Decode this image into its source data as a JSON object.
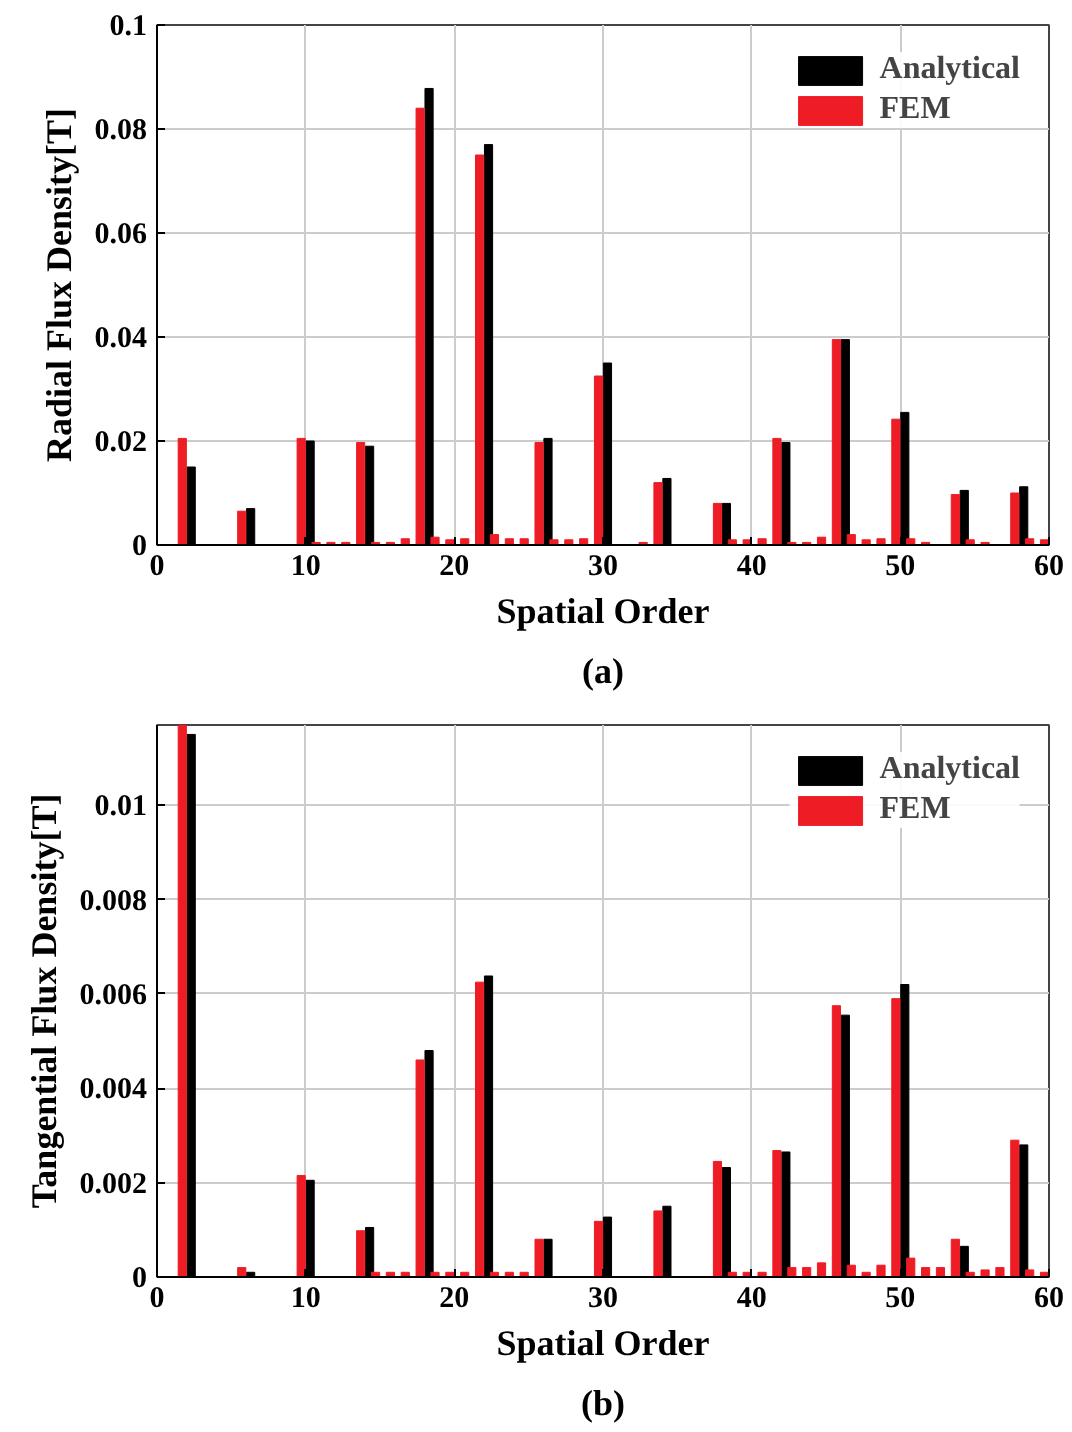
{
  "chart_data": [
    {
      "type": "bar",
      "xlabel": "Spatial Order",
      "ylabel": "Radial Flux Density[T]",
      "annotations": [
        "(a)"
      ],
      "xlim": [
        0,
        60
      ],
      "xticks": [
        0,
        10,
        20,
        30,
        40,
        50,
        60
      ],
      "ylim": [
        0,
        0.1
      ],
      "yticks": [
        0,
        0.02,
        0.04,
        0.06,
        0.08,
        0.1
      ],
      "grid": true,
      "legend": "top right",
      "series": [
        {
          "name": "Analytical",
          "color": "#000000",
          "x": [
            2,
            6,
            10,
            14,
            18,
            22,
            26,
            30,
            34,
            38,
            42,
            46,
            50,
            54,
            58
          ],
          "values": [
            0.015,
            0.007,
            0.02,
            0.019,
            0.0878,
            0.077,
            0.0205,
            0.035,
            0.0128,
            0.008,
            0.0197,
            0.0395,
            0.0255,
            0.0105,
            0.0112
          ]
        },
        {
          "name": "FEM",
          "color": "#ee1c25",
          "x": [
            2,
            6,
            10,
            11,
            12,
            13,
            14,
            15,
            16,
            17,
            18,
            19,
            20,
            21,
            22,
            23,
            24,
            25,
            26,
            27,
            28,
            29,
            30,
            33,
            34,
            38,
            39,
            40,
            41,
            42,
            43,
            44,
            45,
            46,
            47,
            48,
            49,
            50,
            51,
            52,
            54,
            55,
            56,
            58,
            59,
            60
          ],
          "values": [
            0.0205,
            0.0065,
            0.0205,
            0.0005,
            0.0005,
            0.0005,
            0.0197,
            0.0005,
            0.0005,
            0.0012,
            0.084,
            0.0015,
            0.001,
            0.0012,
            0.075,
            0.002,
            0.0012,
            0.0012,
            0.0197,
            0.001,
            0.001,
            0.0012,
            0.0325,
            0.0005,
            0.012,
            0.008,
            0.001,
            0.001,
            0.0012,
            0.0205,
            0.0005,
            0.0005,
            0.0015,
            0.0395,
            0.002,
            0.001,
            0.0012,
            0.0242,
            0.0012,
            0.0005,
            0.0097,
            0.001,
            0.0005,
            0.01,
            0.0012,
            0.001
          ]
        }
      ]
    },
    {
      "type": "bar",
      "xlabel": "Spatial Order",
      "ylabel": "Tangential Flux Density[T]",
      "annotations": [
        "(b)"
      ],
      "xlim": [
        0,
        60
      ],
      "xticks": [
        0,
        10,
        20,
        30,
        40,
        50,
        60
      ],
      "ylim": [
        0,
        0.0117
      ],
      "yticks": [
        0,
        0.002,
        0.004,
        0.006,
        0.008,
        0.01
      ],
      "grid": true,
      "legend": "top right",
      "series": [
        {
          "name": "Analytical",
          "color": "#000000",
          "x": [
            2,
            6,
            10,
            14,
            18,
            22,
            26,
            30,
            34,
            38,
            42,
            46,
            50,
            54,
            58
          ],
          "values": [
            0.0115,
            0.0001,
            0.00205,
            0.00105,
            0.0048,
            0.00638,
            0.0008,
            0.00127,
            0.0015,
            0.00232,
            0.00265,
            0.00555,
            0.0062,
            0.00065,
            0.0028
          ]
        },
        {
          "name": "FEM",
          "color": "#ee1c25",
          "x": [
            2,
            6,
            10,
            14,
            15,
            16,
            17,
            18,
            19,
            20,
            21,
            22,
            23,
            24,
            25,
            26,
            30,
            34,
            38,
            39,
            40,
            41,
            42,
            43,
            44,
            45,
            46,
            47,
            48,
            49,
            50,
            51,
            52,
            53,
            54,
            55,
            56,
            57,
            58,
            59,
            60
          ],
          "values": [
            0.0117,
            0.0002,
            0.00215,
            0.00098,
            0.0001,
            0.0001,
            0.0001,
            0.0046,
            0.0001,
            0.0001,
            0.0001,
            0.00625,
            0.0001,
            0.0001,
            0.0001,
            0.0008,
            0.00118,
            0.0014,
            0.00245,
            0.0001,
            0.0001,
            0.0001,
            0.00268,
            0.0002,
            0.0002,
            0.0003,
            0.00575,
            0.00025,
            0.0001,
            0.00025,
            0.0059,
            0.0004,
            0.0002,
            0.0002,
            0.0008,
            0.0001,
            0.00015,
            0.0002,
            0.0029,
            0.00015,
            0.0001
          ]
        }
      ]
    }
  ]
}
